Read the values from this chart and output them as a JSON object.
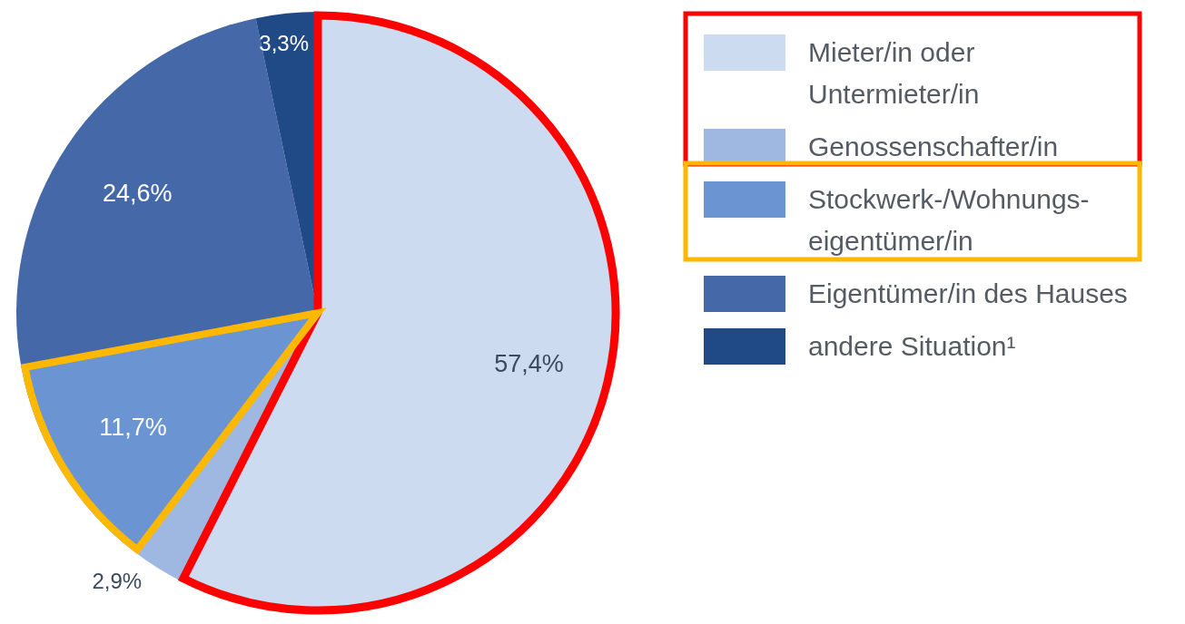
{
  "chart_data": {
    "type": "pie",
    "categories": [
      "Mieter/in oder\nUntermieter/in",
      "Genossenschafter/in",
      "Stockwerk-/Wohnungs-\neigentümer/in",
      "Eigentümer/in des Hauses",
      "andere Situation¹"
    ],
    "values": [
      57.4,
      2.9,
      11.7,
      24.6,
      3.3
    ],
    "colors": [
      "#cddbf1",
      "#9fb8e2",
      "#6b94d2",
      "#4468a8",
      "#1f4a86"
    ],
    "value_labels": [
      "57,4%",
      "2,9%",
      "11,7%",
      "24,6%",
      "3,3%"
    ],
    "legend": "right"
  }
}
